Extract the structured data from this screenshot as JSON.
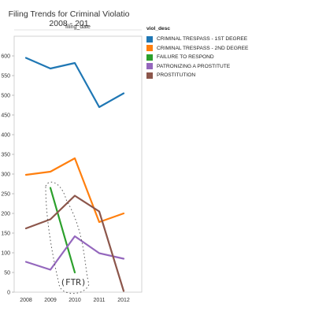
{
  "chart_data": {
    "type": "line",
    "title": "Filing Trends for Criminal Violatio",
    "subtitle": "2008 - 201",
    "xlabel": "filing_date",
    "ylabel": "",
    "x": [
      "2008",
      "2009",
      "2010",
      "2011",
      "2012"
    ],
    "ylim": [
      0,
      650
    ],
    "yticks": [
      0,
      50,
      100,
      150,
      200,
      250,
      300,
      350,
      400,
      450,
      500,
      550,
      600
    ],
    "grid": false,
    "legend_title": "viol_desc",
    "legend_position": "top-right",
    "series": [
      {
        "name": "CRIMINAL TRESPASS - 1ST DEGREE",
        "color": "#1f77b4",
        "values": [
          595,
          568,
          582,
          470,
          505
        ]
      },
      {
        "name": "CRIMINAL TRESPASS - 2ND DEGREE",
        "color": "#ff7f0e",
        "values": [
          298,
          306,
          340,
          178,
          200
        ]
      },
      {
        "name": "FAILURE TO RESPOND",
        "color": "#2ca02c",
        "values": [
          null,
          265,
          50,
          null,
          null
        ]
      },
      {
        "name": "PATRONIZING A PROSTITUTE",
        "color": "#9467bd",
        "values": [
          77,
          57,
          142,
          99,
          85
        ]
      },
      {
        "name": "PROSTITUTION",
        "color": "#8c564b",
        "values": [
          162,
          185,
          245,
          205,
          3
        ]
      }
    ],
    "annotation": "FTR"
  }
}
